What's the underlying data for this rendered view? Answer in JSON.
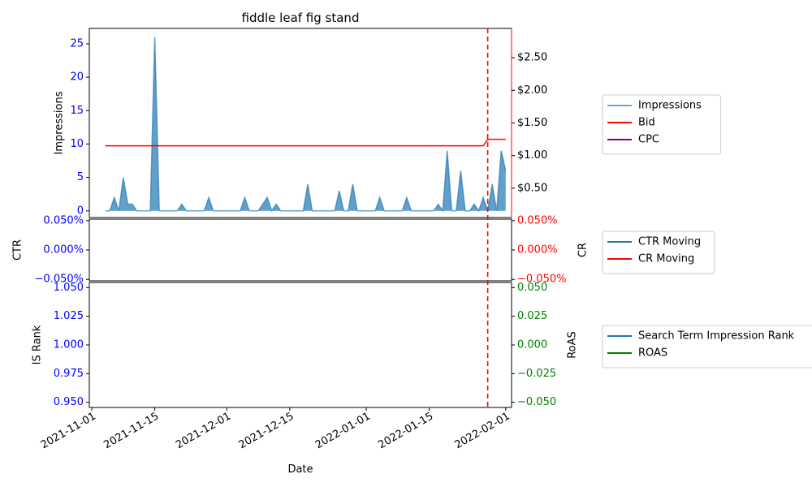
{
  "chart_data": {
    "type": "area",
    "title": "fiddle leaf fig stand",
    "xlabel": "Date",
    "x_ticks": [
      "2021-11-01",
      "2021-11-15",
      "2021-12-01",
      "2021-12-15",
      "2022-01-01",
      "2022-01-15",
      "2022-02-01"
    ],
    "vline_date": "2022-01-28",
    "colors": {
      "impressions": "#1f77b4",
      "bid": "#ff0000",
      "cpc": "#800080",
      "ctr": "#1f77b4",
      "cr": "#ff0000",
      "rank": "#1f77b4",
      "roas": "#008000",
      "blue_tick": "#0000ff",
      "red_tick": "#ff0000",
      "green_tick": "#008000",
      "vline": "#ff0000"
    },
    "panel1": {
      "ylabel_left": "Impressions",
      "ylim_left": [
        -1,
        27.3
      ],
      "yticks_left": [
        "0",
        "5",
        "10",
        "15",
        "20",
        "25"
      ],
      "ylim_right": [
        0.05,
        2.95
      ],
      "yticks_right": [
        "$0.50",
        "$1.00",
        "$1.50",
        "$2.00",
        "$2.50"
      ],
      "impressions": {
        "name": "Impressions",
        "x": [
          "2021-11-04",
          "2021-11-05",
          "2021-11-06",
          "2021-11-07",
          "2021-11-08",
          "2021-11-09",
          "2021-11-10",
          "2021-11-11",
          "2021-11-12",
          "2021-11-13",
          "2021-11-14",
          "2021-11-15",
          "2021-11-16",
          "2021-11-17",
          "2021-11-18",
          "2021-11-19",
          "2021-11-20",
          "2021-11-21",
          "2021-11-22",
          "2021-11-23",
          "2021-11-24",
          "2021-11-25",
          "2021-11-26",
          "2021-11-27",
          "2021-11-28",
          "2021-11-29",
          "2021-11-30",
          "2021-12-01",
          "2021-12-02",
          "2021-12-03",
          "2021-12-04",
          "2021-12-05",
          "2021-12-06",
          "2021-12-07",
          "2021-12-08",
          "2021-12-09",
          "2021-12-10",
          "2021-12-11",
          "2021-12-12",
          "2021-12-13",
          "2021-12-14",
          "2021-12-15",
          "2021-12-16",
          "2021-12-17",
          "2021-12-18",
          "2021-12-19",
          "2021-12-20",
          "2021-12-21",
          "2021-12-22",
          "2021-12-23",
          "2021-12-24",
          "2021-12-25",
          "2021-12-26",
          "2021-12-27",
          "2021-12-28",
          "2021-12-29",
          "2021-12-30",
          "2021-12-31",
          "2022-01-01",
          "2022-01-02",
          "2022-01-03",
          "2022-01-04",
          "2022-01-05",
          "2022-01-06",
          "2022-01-07",
          "2022-01-08",
          "2022-01-09",
          "2022-01-10",
          "2022-01-11",
          "2022-01-12",
          "2022-01-13",
          "2022-01-14",
          "2022-01-15",
          "2022-01-16",
          "2022-01-17",
          "2022-01-18",
          "2022-01-19",
          "2022-01-20",
          "2022-01-21",
          "2022-01-22",
          "2022-01-23",
          "2022-01-24",
          "2022-01-25",
          "2022-01-26",
          "2022-01-27",
          "2022-01-28",
          "2022-01-29",
          "2022-01-30",
          "2022-01-31",
          "2022-02-01"
        ],
        "values": [
          0,
          0,
          2,
          0,
          5,
          1,
          1,
          0,
          0,
          0,
          0,
          26,
          0,
          0,
          0,
          0,
          0,
          1,
          0,
          0,
          0,
          0,
          0,
          2,
          0,
          0,
          0,
          0,
          0,
          0,
          0,
          2,
          0,
          0,
          0,
          1,
          2,
          0,
          1,
          0,
          0,
          0,
          0,
          0,
          0,
          4,
          0,
          0,
          0,
          0,
          0,
          0,
          3,
          0,
          0,
          4,
          0,
          0,
          0,
          0,
          0,
          2,
          0,
          0,
          0,
          0,
          0,
          2,
          0,
          0,
          0,
          0,
          0,
          0,
          1,
          0,
          9,
          0,
          0,
          6,
          0,
          0,
          1,
          0,
          2,
          0,
          4,
          0,
          9,
          6
        ]
      },
      "bid": {
        "name": "Bid",
        "x": [
          "2021-11-04",
          "2022-01-27",
          "2022-01-28",
          "2022-02-01"
        ],
        "values": [
          1.15,
          1.15,
          1.25,
          1.25
        ]
      },
      "cpc": {
        "name": "CPC"
      }
    },
    "panel2": {
      "ylabel_left": "CTR",
      "ylabel_right": "CR",
      "yticks_left": [
        "0.050%",
        "0.000%",
        "−0.050%"
      ],
      "yticks_right": [
        "0.050%",
        "0.000%",
        "−0.050%"
      ],
      "ctr": {
        "name": "CTR Moving"
      },
      "cr": {
        "name": "CR Moving"
      }
    },
    "panel3": {
      "ylabel_left": "IS Rank",
      "ylabel_right": "RoAS",
      "yticks_left": [
        "1.050",
        "1.025",
        "1.000",
        "0.975",
        "0.950"
      ],
      "yticks_right": [
        "0.050",
        "0.025",
        "0.000",
        "−0.025",
        "−0.050"
      ],
      "rank": {
        "name": "Search Term Impression Rank"
      },
      "roas": {
        "name": "ROAS"
      }
    }
  }
}
